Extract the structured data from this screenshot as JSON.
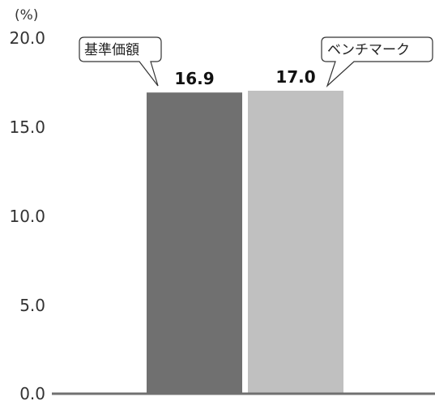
{
  "chart_data": {
    "type": "bar",
    "unit_label": "(%)",
    "categories": [
      "基準価額",
      "ベンチマーク"
    ],
    "values": [
      16.9,
      17.0
    ],
    "value_labels": [
      "16.9",
      "17.0"
    ],
    "colors": [
      "#707070",
      "#c0c0c0"
    ],
    "ylim": [
      0,
      20
    ],
    "yticks": [
      "0.0",
      "5.0",
      "10.0",
      "15.0",
      "20.0"
    ],
    "grid": false,
    "legend": "callouts-above-bars"
  }
}
